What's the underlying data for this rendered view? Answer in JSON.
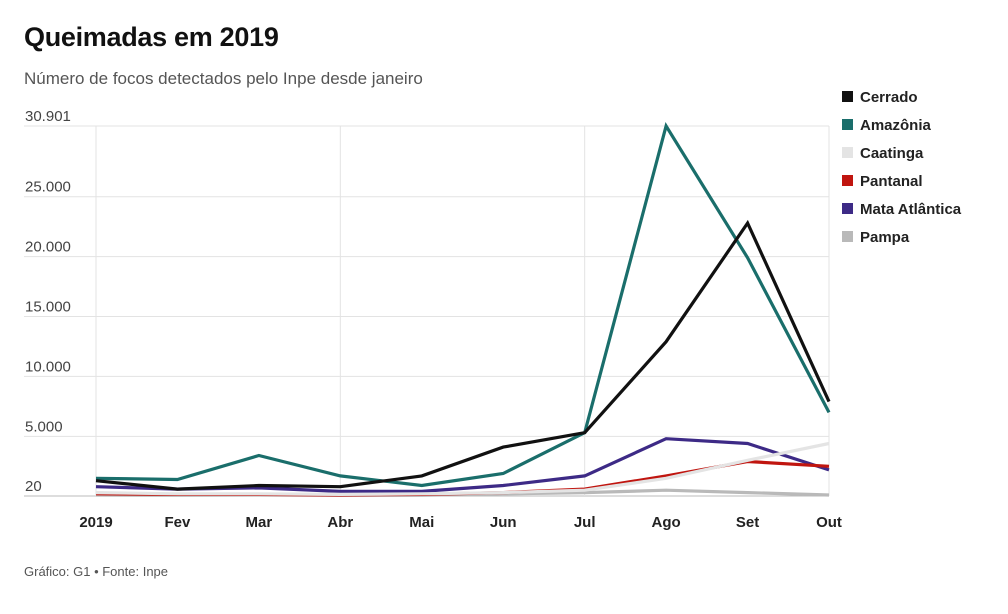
{
  "header": {
    "title": "Queimadas em 2019",
    "subtitle": "Número de focos detectados pelo Inpe desde janeiro"
  },
  "footer": {
    "source": "Gráfico: G1 • Fonte: Inpe"
  },
  "chart_data": {
    "type": "line",
    "title": "Queimadas em 2019",
    "subtitle": "Número de focos detectados pelo Inpe desde janeiro",
    "xlabel": "",
    "ylabel": "",
    "categories": [
      "2019",
      "Fev",
      "Mar",
      "Abr",
      "Mai",
      "Jun",
      "Jul",
      "Ago",
      "Set",
      "Out"
    ],
    "y_ticks": [
      20,
      5000,
      10000,
      15000,
      20000,
      25000,
      30901
    ],
    "y_tick_labels": [
      "20",
      "5.000",
      "10.000",
      "15.000",
      "20.000",
      "25.000",
      "30.901"
    ],
    "ylim": [
      20,
      30901
    ],
    "grid": true,
    "legend_position": "top-right",
    "series": [
      {
        "name": "Cerrado",
        "color": "#111111",
        "values": [
          1300,
          600,
          900,
          800,
          1700,
          4100,
          5300,
          12900,
          22800,
          7900
        ]
      },
      {
        "name": "Amazônia",
        "color": "#1a6e6b",
        "values": [
          1500,
          1400,
          3400,
          1700,
          900,
          1900,
          5300,
          30901,
          19900,
          7000
        ]
      },
      {
        "name": "Caatinga",
        "color": "#e4e4e4",
        "values": [
          300,
          200,
          200,
          150,
          200,
          300,
          500,
          1500,
          3000,
          4400
        ]
      },
      {
        "name": "Pantanal",
        "color": "#c0150f",
        "values": [
          200,
          150,
          150,
          100,
          150,
          300,
          600,
          1700,
          2900,
          2500
        ]
      },
      {
        "name": "Mata Atlântica",
        "color": "#3d2a86",
        "values": [
          800,
          600,
          700,
          400,
          400,
          900,
          1700,
          4800,
          4400,
          2200
        ]
      },
      {
        "name": "Pampa",
        "color": "#b9b9b9",
        "values": [
          100,
          80,
          100,
          80,
          80,
          200,
          300,
          500,
          300,
          100
        ]
      }
    ]
  }
}
